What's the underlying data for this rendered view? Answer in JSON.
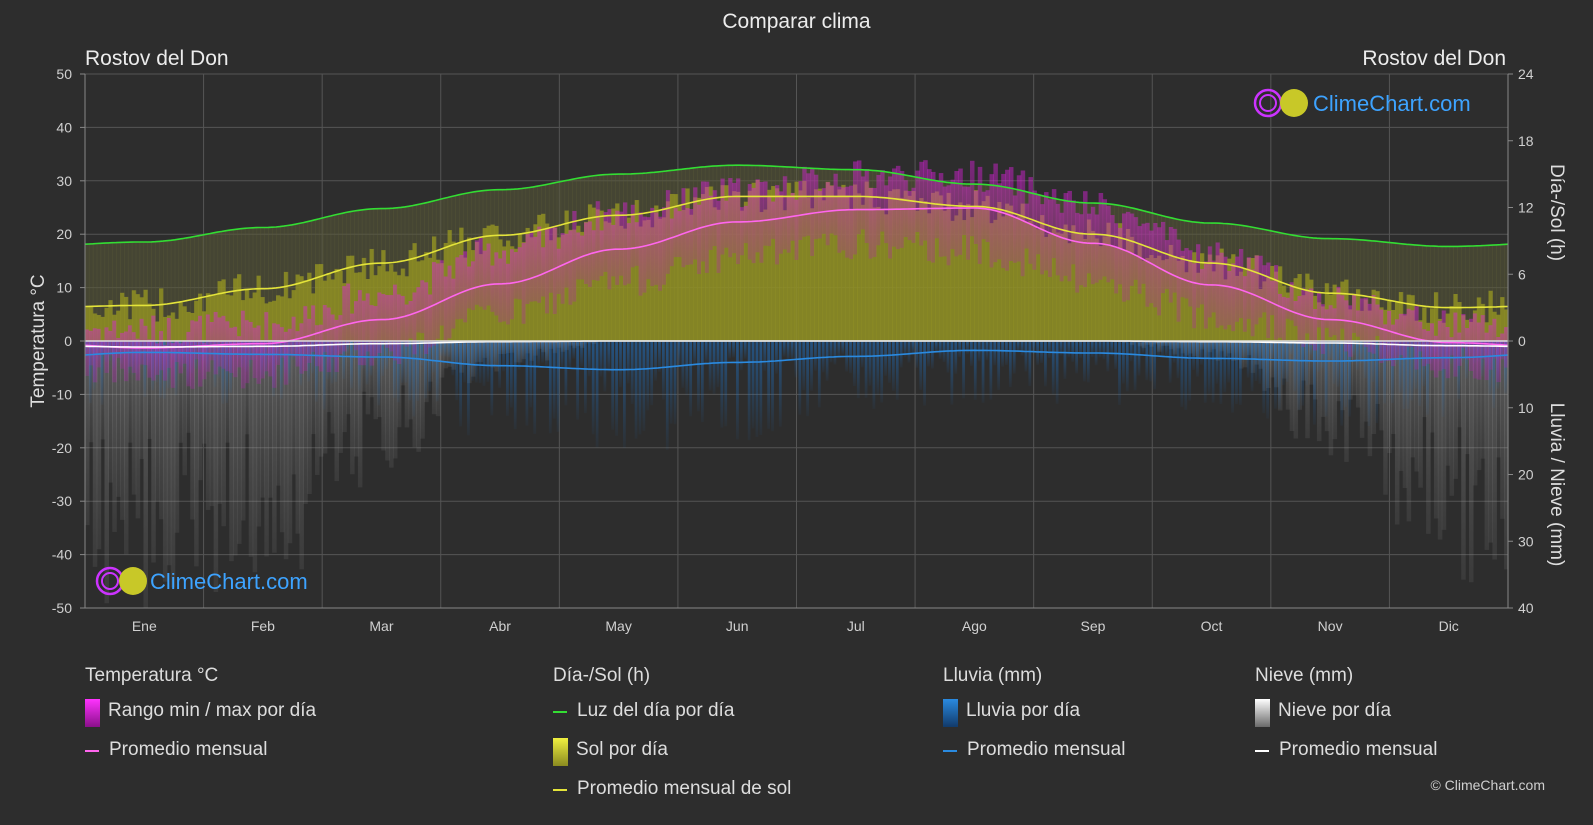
{
  "title": "Comparar clima",
  "location_left": "Rostov del Don",
  "location_right": "Rostov del Don",
  "brand": "ClimeChart.com",
  "copyright": "© ClimeChart.com",
  "colors": {
    "background": "#2d2d2d",
    "temp_range": "#d81bd8",
    "temp_avg": "#ff66ee",
    "daylight": "#33dd33",
    "sunshine_fill": "#9a9a22",
    "sunshine_avg": "#e4e43a",
    "rain": "#1e73c8",
    "rain_avg": "#2a8ae0",
    "snow": "#9a9a9a",
    "snow_avg": "#ffffff",
    "brand_text": "#3da3ff"
  },
  "legend": {
    "temperature": {
      "header": "Temperatura °C",
      "items": [
        "Rango min / max por día",
        "Promedio mensual"
      ]
    },
    "daysun": {
      "header": "Día-/Sol (h)",
      "items": [
        "Luz del día por día",
        "Sol por día",
        "Promedio mensual de sol"
      ]
    },
    "rain": {
      "header": "Lluvia (mm)",
      "items": [
        "Lluvia por día",
        "Promedio mensual"
      ]
    },
    "snow": {
      "header": "Nieve (mm)",
      "items": [
        "Nieve por día",
        "Promedio mensual"
      ]
    }
  },
  "chart_data": {
    "type": "line",
    "categories": [
      "Ene",
      "Feb",
      "Mar",
      "Abr",
      "May",
      "Jun",
      "Jul",
      "Ago",
      "Sep",
      "Oct",
      "Nov",
      "Dic"
    ],
    "y_left": {
      "label": "Temperatura °C",
      "min": -50,
      "max": 50,
      "ticks": [
        50,
        40,
        30,
        20,
        10,
        0,
        -10,
        -20,
        -30,
        -40,
        -50
      ]
    },
    "y_right_top": {
      "label": "Día-/Sol (h)",
      "min": 0,
      "max": 24,
      "ticks": [
        24,
        18,
        12,
        6,
        0
      ]
    },
    "y_right_bottom": {
      "label": "Lluvia / Nieve (mm)",
      "min": 0,
      "max": 40,
      "ticks": [
        0,
        10,
        20,
        30,
        40
      ]
    },
    "grid": true,
    "series": [
      {
        "name": "Luz del día por día",
        "unit": "h",
        "values": [
          8.9,
          10.2,
          11.9,
          13.6,
          15.0,
          15.8,
          15.4,
          14.1,
          12.4,
          10.6,
          9.2,
          8.5
        ]
      },
      {
        "name": "Promedio mensual de sol",
        "unit": "h",
        "values": [
          3.2,
          4.7,
          7.0,
          9.5,
          11.3,
          13.0,
          13.0,
          12.1,
          9.6,
          7.0,
          4.3,
          3.0
        ]
      },
      {
        "name": "Promedio mensual",
        "group": "Temperatura °C",
        "unit": "°C",
        "values": [
          -1.3,
          -0.5,
          4.0,
          10.7,
          17.2,
          22.3,
          24.6,
          24.9,
          18.3,
          10.5,
          4.0,
          -0.3
        ]
      },
      {
        "name": "Promedio mensual",
        "group": "Lluvia (mm)",
        "unit": "mm",
        "values": [
          1.7,
          2.0,
          2.4,
          3.7,
          4.3,
          3.2,
          2.3,
          1.4,
          1.8,
          2.6,
          3.0,
          2.5
        ]
      },
      {
        "name": "Promedio mensual",
        "group": "Nieve (mm)",
        "unit": "mm",
        "values": [
          0.9,
          0.8,
          0.4,
          0.1,
          0.0,
          0.0,
          0.0,
          0.0,
          0.0,
          0.1,
          0.3,
          0.7
        ]
      }
    ],
    "temp_range_daily": {
      "min": [
        -6,
        -6,
        -2,
        5,
        11,
        16,
        18,
        17,
        11,
        5,
        0,
        -4
      ],
      "max": [
        2,
        3,
        9,
        17,
        24,
        28,
        31,
        31,
        25,
        16,
        8,
        3
      ]
    },
    "sunshine_daily": [
      3.2,
      4.7,
      7.0,
      9.5,
      11.3,
      13.0,
      13.0,
      12.1,
      9.6,
      7.0,
      4.3,
      3.0
    ],
    "rain_daily_mm": [
      5,
      5,
      6,
      8,
      9,
      8,
      6,
      5,
      5,
      6,
      7,
      6
    ],
    "snow_daily_mm": [
      28,
      26,
      14,
      3,
      0,
      0,
      0,
      0,
      0,
      2,
      12,
      24
    ]
  }
}
